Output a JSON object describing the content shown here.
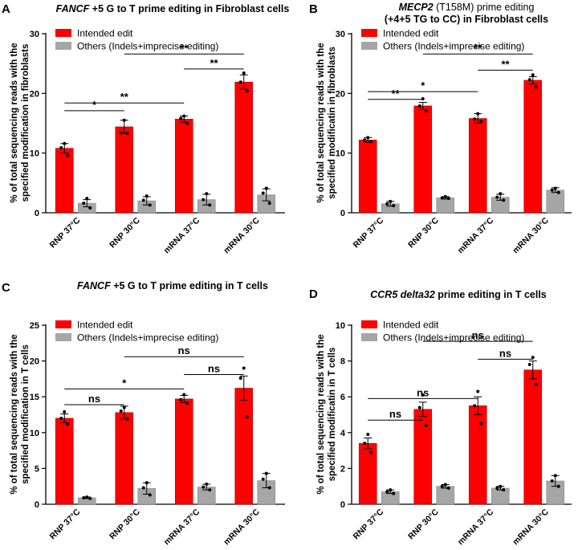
{
  "chart_data": [
    {
      "panel": "A",
      "type": "bar",
      "title_gene": "FANCF",
      "title_rest": " +5 G to T prime editing in Fibroblast cells",
      "title_line2": "",
      "ylabel": [
        "% of total sequencing reads with the",
        "specified modification in fibroblasts"
      ],
      "ylim": [
        0,
        30
      ],
      "yticks": [
        0,
        10,
        20,
        30
      ],
      "categories": [
        "RNP 37°C",
        "RNP 30°C",
        "mRNA 37°C",
        "mRNA 30°C"
      ],
      "series": [
        {
          "name": "Intended edit",
          "color": "#ff0000",
          "values": [
            10.8,
            14.4,
            15.7,
            21.9
          ],
          "errors": [
            0.8,
            1.1,
            0.5,
            1.2
          ],
          "points": [
            [
              11.6,
              10.9,
              9.6
            ],
            [
              15.5,
              13.4,
              13.3
            ],
            [
              16.2,
              15.8,
              15.0
            ],
            [
              23.4,
              21.9,
              20.4
            ]
          ]
        },
        {
          "name": "Others (Indels+imprecise editing)",
          "color": "#a6a6a6",
          "values": [
            1.6,
            2.0,
            2.2,
            3.0
          ],
          "errors": [
            0.6,
            0.7,
            0.9,
            1.0
          ],
          "points": [
            [
              2.4,
              1.6,
              0.8
            ],
            [
              2.8,
              2.1,
              1.3
            ],
            [
              3.2,
              2.2,
              1.3
            ],
            [
              4.1,
              3.3,
              1.6
            ]
          ]
        }
      ],
      "significance": [
        {
          "from": 0,
          "to": 1,
          "y": 17.1,
          "label": "*"
        },
        {
          "from": 0,
          "to": 2,
          "y": 18.4,
          "label": "**"
        },
        {
          "from": 2,
          "to": 3,
          "y": 24.1,
          "label": "**"
        },
        {
          "from": 1,
          "to": 3,
          "y": 26.6,
          "label": "**"
        }
      ],
      "legend_placement": "top-left"
    },
    {
      "panel": "B",
      "type": "bar",
      "title_gene": "MECP2",
      "title_rest": " (T158M) prime editing",
      "title_line2": "(+4+5 TG to CC) in Fibroblast cells",
      "ylabel": [
        "% of total sequencing reads with the",
        "specified modificatin in fibroblasts"
      ],
      "ylim": [
        0,
        30
      ],
      "yticks": [
        0,
        10,
        20,
        30
      ],
      "categories": [
        "RNP 37°C",
        "RNP 30°C",
        "mRNA 37°C",
        "mRNA 30°C"
      ],
      "series": [
        {
          "name": "Intended edit",
          "color": "#ff0000",
          "values": [
            12.2,
            17.9,
            15.8,
            22.2
          ],
          "errors": [
            0.4,
            0.6,
            0.8,
            0.6
          ],
          "points": [
            [
              12.6,
              12.2,
              11.9
            ],
            [
              19.1,
              17.9,
              17.1
            ],
            [
              16.6,
              15.7,
              15.3
            ],
            [
              23.1,
              22.3,
              21.1
            ]
          ]
        },
        {
          "name": "Others (Indels+imprecise editing)",
          "color": "#a6a6a6",
          "values": [
            1.5,
            2.5,
            2.6,
            3.8
          ],
          "errors": [
            0.4,
            0.2,
            0.5,
            0.4
          ],
          "points": [
            [
              1.9,
              1.5,
              1.2
            ],
            [
              2.7,
              2.5,
              2.4
            ],
            [
              3.2,
              2.6,
              2.1
            ],
            [
              4.1,
              3.8,
              3.4
            ]
          ]
        }
      ],
      "significance": [
        {
          "from": 0,
          "to": 1,
          "y": 19.0,
          "label": "**"
        },
        {
          "from": 0,
          "to": 2,
          "y": 20.3,
          "label": "*"
        },
        {
          "from": 2,
          "to": 3,
          "y": 23.9,
          "label": "**"
        },
        {
          "from": 1,
          "to": 3,
          "y": 26.6,
          "label": "**"
        }
      ],
      "legend_placement": "top-left"
    },
    {
      "panel": "C",
      "type": "bar",
      "title_gene": "FANCF",
      "title_rest": " +5 G to T prime editing in T cells",
      "title_line2": "",
      "ylabel": [
        "% of total sequencing reads with the",
        "specified modification in T cells"
      ],
      "ylim": [
        0,
        25
      ],
      "yticks": [
        0,
        5,
        10,
        15,
        20,
        25
      ],
      "categories": [
        "RNP 37°C",
        "RNP 30°C",
        "mRNA 37°C",
        "mRNA 30°C"
      ],
      "series": [
        {
          "name": "Intended edit",
          "color": "#ff0000",
          "values": [
            12.0,
            12.8,
            14.7,
            16.2
          ],
          "errors": [
            0.6,
            0.9,
            0.5,
            1.7
          ],
          "points": [
            [
              12.9,
              12.0,
              11.2
            ],
            [
              13.5,
              13.0,
              11.9
            ],
            [
              15.3,
              14.6,
              14.1
            ],
            [
              19.0,
              17.6,
              12.2
            ]
          ]
        },
        {
          "name": "Others (Indels+imprecise editing)",
          "color": "#a6a6a6",
          "values": [
            0.9,
            2.2,
            2.4,
            3.3
          ],
          "errors": [
            0.1,
            0.8,
            0.4,
            1.0
          ],
          "points": [
            [
              1.0,
              0.9,
              0.8
            ],
            [
              3.0,
              2.3,
              1.3
            ],
            [
              2.8,
              2.4,
              2.0
            ],
            [
              4.3,
              3.5,
              2.3
            ]
          ]
        }
      ],
      "significance": [
        {
          "from": 0,
          "to": 1,
          "y": 13.9,
          "label": "ns"
        },
        {
          "from": 0,
          "to": 2,
          "y": 16.1,
          "label": "*"
        },
        {
          "from": 2,
          "to": 3,
          "y": 18.1,
          "label": "ns"
        },
        {
          "from": 1,
          "to": 3,
          "y": 20.6,
          "label": "ns"
        }
      ],
      "legend_placement": "top-left"
    },
    {
      "panel": "D",
      "type": "bar",
      "title_gene": "CCR5 delta32",
      "title_rest": " prime editing in T cells",
      "title_line2": "",
      "ylabel": [
        "% of total sequencing reads with the",
        "specified modificatin in T cells"
      ],
      "ylim": [
        0,
        10
      ],
      "yticks": [
        0,
        2,
        4,
        6,
        8,
        10
      ],
      "categories": [
        "RNP 37°C",
        "RNP 30°C",
        "mRNA 37°C",
        "mRNA 30°C"
      ],
      "series": [
        {
          "name": "Intended edit",
          "color": "#ff0000",
          "values": [
            3.4,
            5.3,
            5.5,
            7.5
          ],
          "errors": [
            0.3,
            0.4,
            0.5,
            0.5
          ],
          "points": [
            [
              3.9,
              3.4,
              2.9
            ],
            [
              6.1,
              5.4,
              4.4
            ],
            [
              6.3,
              5.5,
              4.5
            ],
            [
              8.2,
              7.8,
              6.7
            ]
          ]
        },
        {
          "name": "Others (Indels+imprecise editing)",
          "color": "#a6a6a6",
          "values": [
            0.7,
            1.0,
            0.9,
            1.3
          ],
          "errors": [
            0.1,
            0.1,
            0.1,
            0.3
          ],
          "points": [
            [
              0.8,
              0.7,
              0.6
            ],
            [
              1.1,
              1.0,
              0.9
            ],
            [
              1.0,
              0.9,
              0.8
            ],
            [
              1.6,
              1.3,
              1.0
            ]
          ]
        }
      ],
      "significance": [
        {
          "from": 0,
          "to": 1,
          "y": 4.7,
          "label": "ns"
        },
        {
          "from": 0,
          "to": 2,
          "y": 5.9,
          "label": "ns"
        },
        {
          "from": 2,
          "to": 3,
          "y": 8.1,
          "label": "ns"
        },
        {
          "from": 1,
          "to": 3,
          "y": 9.1,
          "label": "ns"
        }
      ],
      "legend_placement": "top-left"
    }
  ]
}
